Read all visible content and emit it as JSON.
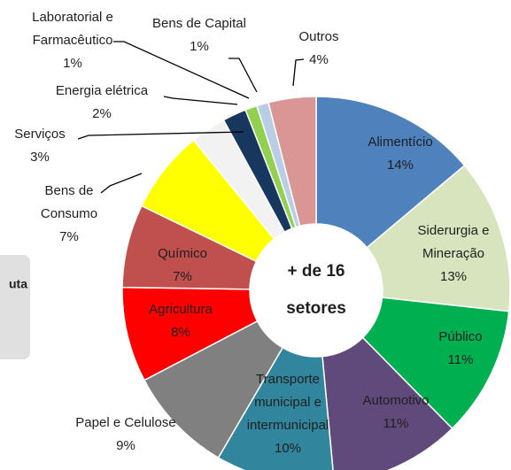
{
  "chart_data": {
    "type": "donut",
    "center_label": "+ de 16 setores",
    "side_text": "uta",
    "categories": [
      "Alimentício",
      "Siderurgia e Mineração",
      "Público",
      "Automotivo",
      "Transporte municipal e intermunicipal",
      "Papel e Celulose",
      "Agricultura",
      "Químico",
      "Bens de Consumo",
      "Serviços",
      "Energia elétrica",
      "Laboratorial e Farmacêutico",
      "Bens de Capital",
      "Outros"
    ],
    "values": [
      14,
      13,
      11,
      11,
      10,
      9,
      8,
      7,
      7,
      3,
      2,
      1,
      1,
      4
    ],
    "value_labels": [
      "14%",
      "13%",
      "11%",
      "11%",
      "10%",
      "9%",
      "8%",
      "7%",
      "7%",
      "3%",
      "2%",
      "1%",
      "1%",
      "4%"
    ],
    "colors": [
      "#4f81bd",
      "#d7e4bd",
      "#00b050",
      "#604a7b",
      "#31859c",
      "#808080",
      "#ff0000",
      "#c0504d",
      "#ffff00",
      "#f2f2f2",
      "#17375e",
      "#92d050",
      "#b9cde5",
      "#d99694"
    ]
  }
}
